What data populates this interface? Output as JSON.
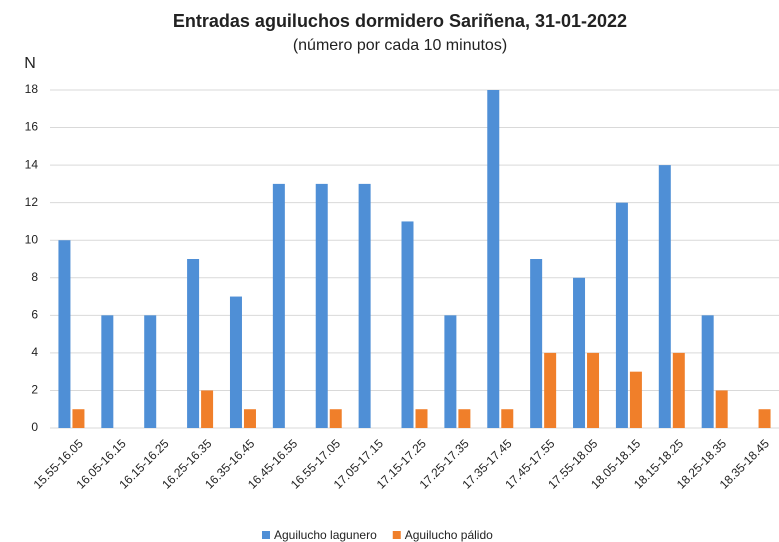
{
  "chart_data": {
    "type": "bar",
    "title": "Entradas aguiluchos dormidero Sariñena, 31-01-2022",
    "subtitle": "(número por cada 10 minutos)",
    "y_label": "N",
    "categories": [
      "15.55-16.05",
      "16.05-16.15",
      "16.15-16.25",
      "16.25-16.35",
      "16.35-16.45",
      "16.45-16.55",
      "16.55-17.05",
      "17.05-17.15",
      "17.15-17.25",
      "17.25-17.35",
      "17.35-17.45",
      "17.45-17.55",
      "17.55-18.05",
      "18.05-18.15",
      "18.15-18.25",
      "18.25-18.35",
      "18.35-18.45"
    ],
    "series": [
      {
        "name": "Aguilucho lagunero",
        "color": "#4f8fd6",
        "values": [
          10,
          6,
          6,
          9,
          7,
          13,
          13,
          13,
          11,
          6,
          18,
          9,
          8,
          12,
          14,
          6,
          0
        ]
      },
      {
        "name": "Aguilucho pálido",
        "color": "#f07f2a",
        "values": [
          1,
          0,
          0,
          2,
          1,
          0,
          1,
          0,
          1,
          1,
          1,
          4,
          4,
          3,
          4,
          2,
          1
        ]
      }
    ],
    "ylim": [
      0,
      18
    ],
    "yticks": [
      0,
      2,
      4,
      6,
      8,
      10,
      12,
      14,
      16,
      18
    ],
    "grid": true,
    "legend": "bottom"
  }
}
